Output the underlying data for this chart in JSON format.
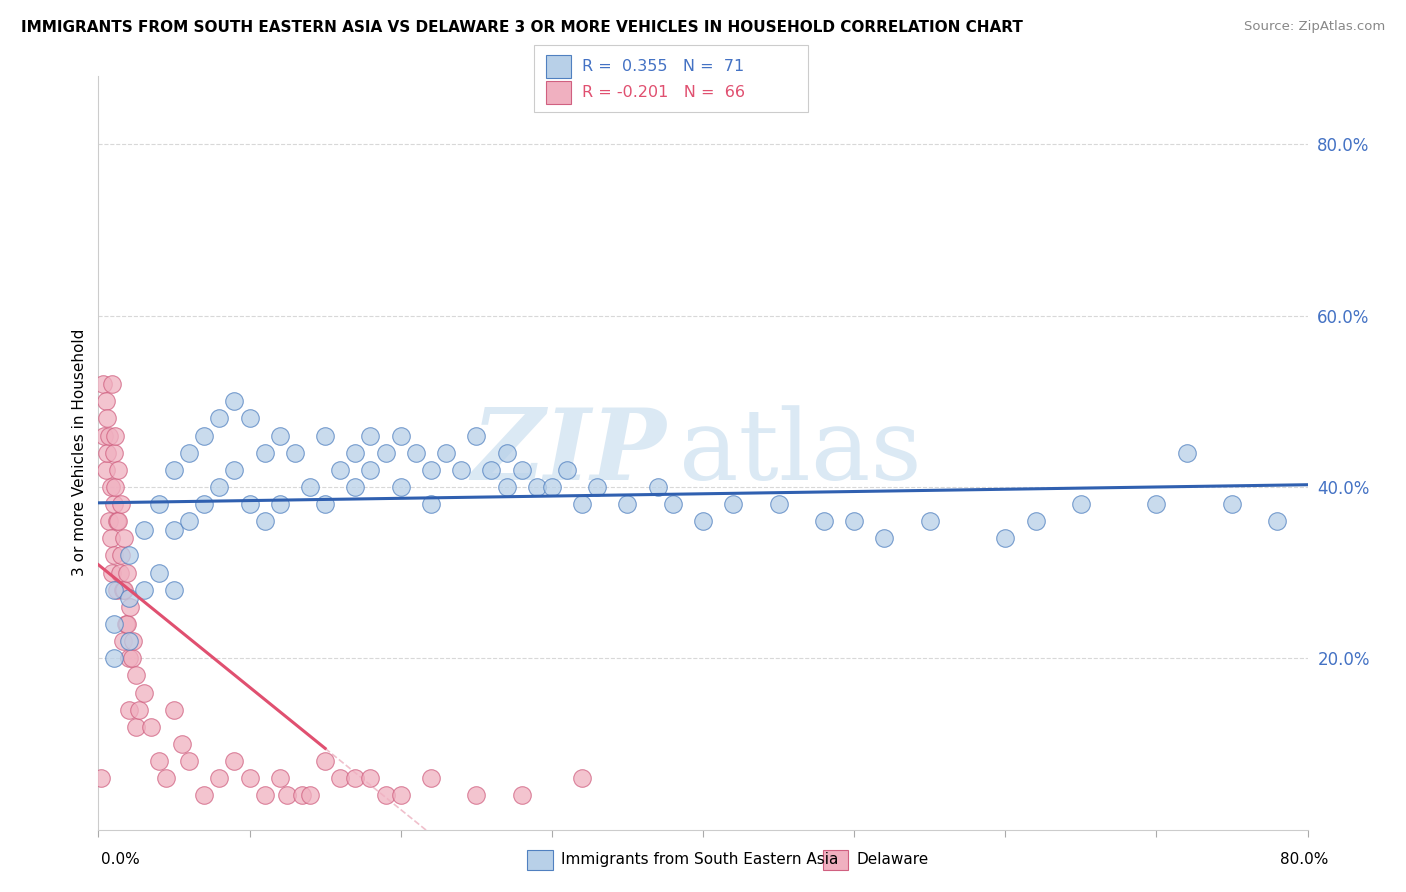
{
  "title": "IMMIGRANTS FROM SOUTH EASTERN ASIA VS DELAWARE 3 OR MORE VEHICLES IN HOUSEHOLD CORRELATION CHART",
  "source": "Source: ZipAtlas.com",
  "ylabel": "3 or more Vehicles in Household",
  "legend_label1": "Immigrants from South Eastern Asia",
  "legend_label2": "Delaware",
  "R1": 0.355,
  "N1": 71,
  "R2": -0.201,
  "N2": 66,
  "blue_face": "#b8d0e8",
  "blue_edge": "#5080c0",
  "pink_face": "#f0b0c0",
  "pink_edge": "#d06080",
  "blue_line": "#3060b0",
  "pink_line_solid": "#e05070",
  "pink_line_dash": "#f0c0cc",
  "watermark_zip": "ZIP",
  "watermark_atlas": "atlas",
  "bg": "#ffffff",
  "grid_color": "#d8d8d8",
  "tick_color": "#4472c4",
  "xmin": 0.0,
  "xmax": 80.0,
  "ymin": 0.0,
  "ymax": 88.0,
  "blue_x": [
    1,
    1,
    1,
    2,
    2,
    2,
    3,
    3,
    4,
    4,
    5,
    5,
    5,
    6,
    6,
    7,
    7,
    8,
    8,
    9,
    9,
    10,
    10,
    11,
    11,
    12,
    12,
    13,
    14,
    15,
    15,
    16,
    17,
    17,
    18,
    18,
    19,
    20,
    20,
    21,
    22,
    22,
    23,
    24,
    25,
    26,
    27,
    27,
    28,
    29,
    30,
    31,
    32,
    33,
    35,
    37,
    38,
    40,
    42,
    45,
    48,
    50,
    52,
    55,
    60,
    62,
    65,
    70,
    72,
    75,
    78
  ],
  "blue_y": [
    28,
    24,
    20,
    32,
    27,
    22,
    35,
    28,
    38,
    30,
    42,
    35,
    28,
    44,
    36,
    46,
    38,
    48,
    40,
    50,
    42,
    48,
    38,
    44,
    36,
    46,
    38,
    44,
    40,
    46,
    38,
    42,
    40,
    44,
    42,
    46,
    44,
    46,
    40,
    44,
    42,
    38,
    44,
    42,
    46,
    42,
    44,
    40,
    42,
    40,
    40,
    42,
    38,
    40,
    38,
    40,
    38,
    36,
    38,
    38,
    36,
    36,
    34,
    36,
    34,
    36,
    38,
    38,
    44,
    38,
    36
  ],
  "pink_x": [
    0.2,
    0.3,
    0.4,
    0.5,
    0.5,
    0.6,
    0.6,
    0.7,
    0.7,
    0.8,
    0.8,
    0.9,
    0.9,
    1.0,
    1.0,
    1.0,
    1.1,
    1.1,
    1.2,
    1.2,
    1.3,
    1.3,
    1.4,
    1.5,
    1.5,
    1.6,
    1.6,
    1.7,
    1.7,
    1.8,
    1.9,
    1.9,
    2.0,
    2.0,
    2.1,
    2.2,
    2.3,
    2.5,
    2.5,
    2.7,
    3.0,
    3.5,
    4.0,
    4.5,
    5.0,
    5.5,
    6.0,
    7.0,
    8.0,
    9.0,
    10.0,
    11.0,
    12.0,
    12.5,
    13.5,
    14.0,
    15.0,
    16.0,
    17.0,
    18.0,
    19.0,
    20.0,
    22.0,
    25.0,
    28.0,
    32.0
  ],
  "pink_y": [
    6,
    52,
    46,
    42,
    50,
    48,
    44,
    36,
    46,
    40,
    34,
    30,
    52,
    44,
    38,
    32,
    46,
    40,
    36,
    28,
    42,
    36,
    30,
    38,
    32,
    28,
    22,
    34,
    28,
    24,
    30,
    24,
    20,
    14,
    26,
    20,
    22,
    18,
    12,
    14,
    16,
    12,
    8,
    6,
    14,
    10,
    8,
    4,
    6,
    8,
    6,
    4,
    6,
    4,
    4,
    4,
    8,
    6,
    6,
    6,
    4,
    4,
    6,
    4,
    4,
    6
  ],
  "pink_solid_xmax": 15.0
}
